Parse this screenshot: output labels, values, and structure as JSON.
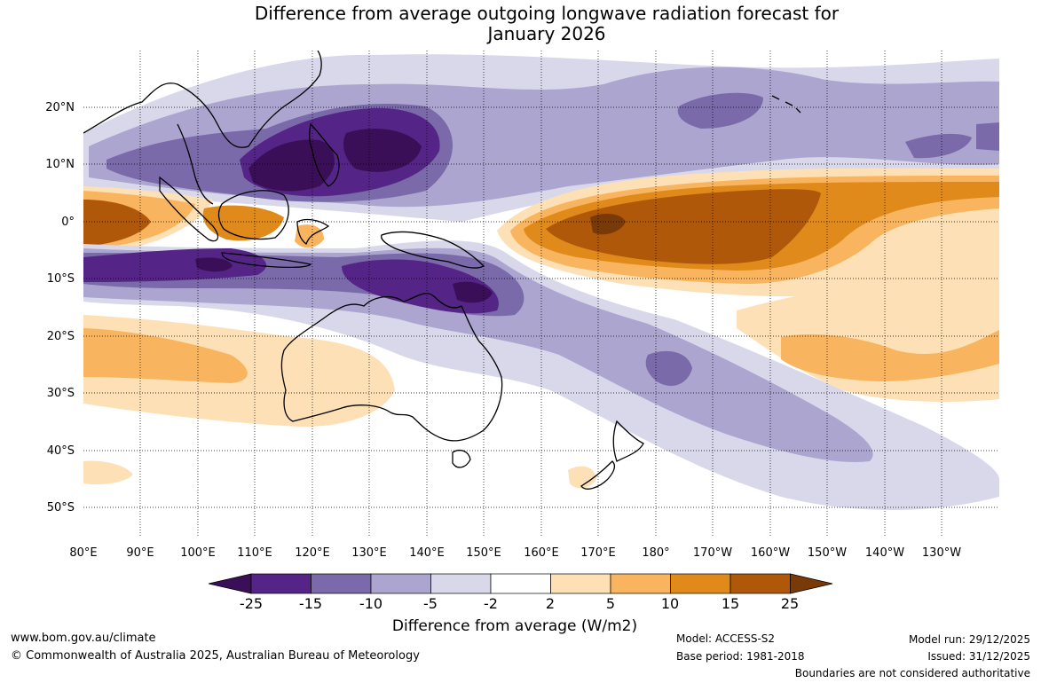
{
  "title": {
    "line1": "Difference from average outgoing longwave radiation forecast for",
    "line2": "January 2026"
  },
  "axes": {
    "lat_labels": [
      "20°N",
      "10°N",
      "0°",
      "10°S",
      "20°S",
      "30°S",
      "40°S",
      "50°S"
    ],
    "lon_labels": [
      "80°E",
      "90°E",
      "100°E",
      "110°E",
      "120°E",
      "130°E",
      "140°E",
      "150°E",
      "160°E",
      "170°E",
      "180°",
      "170°W",
      "160°W",
      "150°W",
      "140°W",
      "130°W"
    ]
  },
  "colorbar": {
    "tick_labels": [
      "-25",
      "-15",
      "-10",
      "-5",
      "-2",
      "2",
      "5",
      "10",
      "15",
      "25"
    ],
    "colors": [
      "#3b0f58",
      "#542486",
      "#7a6aaa",
      "#aba5cf",
      "#d8d8ea",
      "#ffffff",
      "#fde0b6",
      "#f8b45e",
      "#e08a1c",
      "#b0580a",
      "#7a3a08"
    ],
    "title": "Difference from average (W/m2)"
  },
  "footer": {
    "url": "www.bom.gov.au/climate",
    "copyright": "© Commonwealth of Australia 2025, Australian Bureau of Meteorology",
    "model": "Model: ACCESS-S2",
    "base_period": "Base period: 1981-2018",
    "model_run": "Model run: 29/12/2025",
    "issued": "Issued: 31/12/2025",
    "disclaimer": "Boundaries are not considered authoritative"
  }
}
